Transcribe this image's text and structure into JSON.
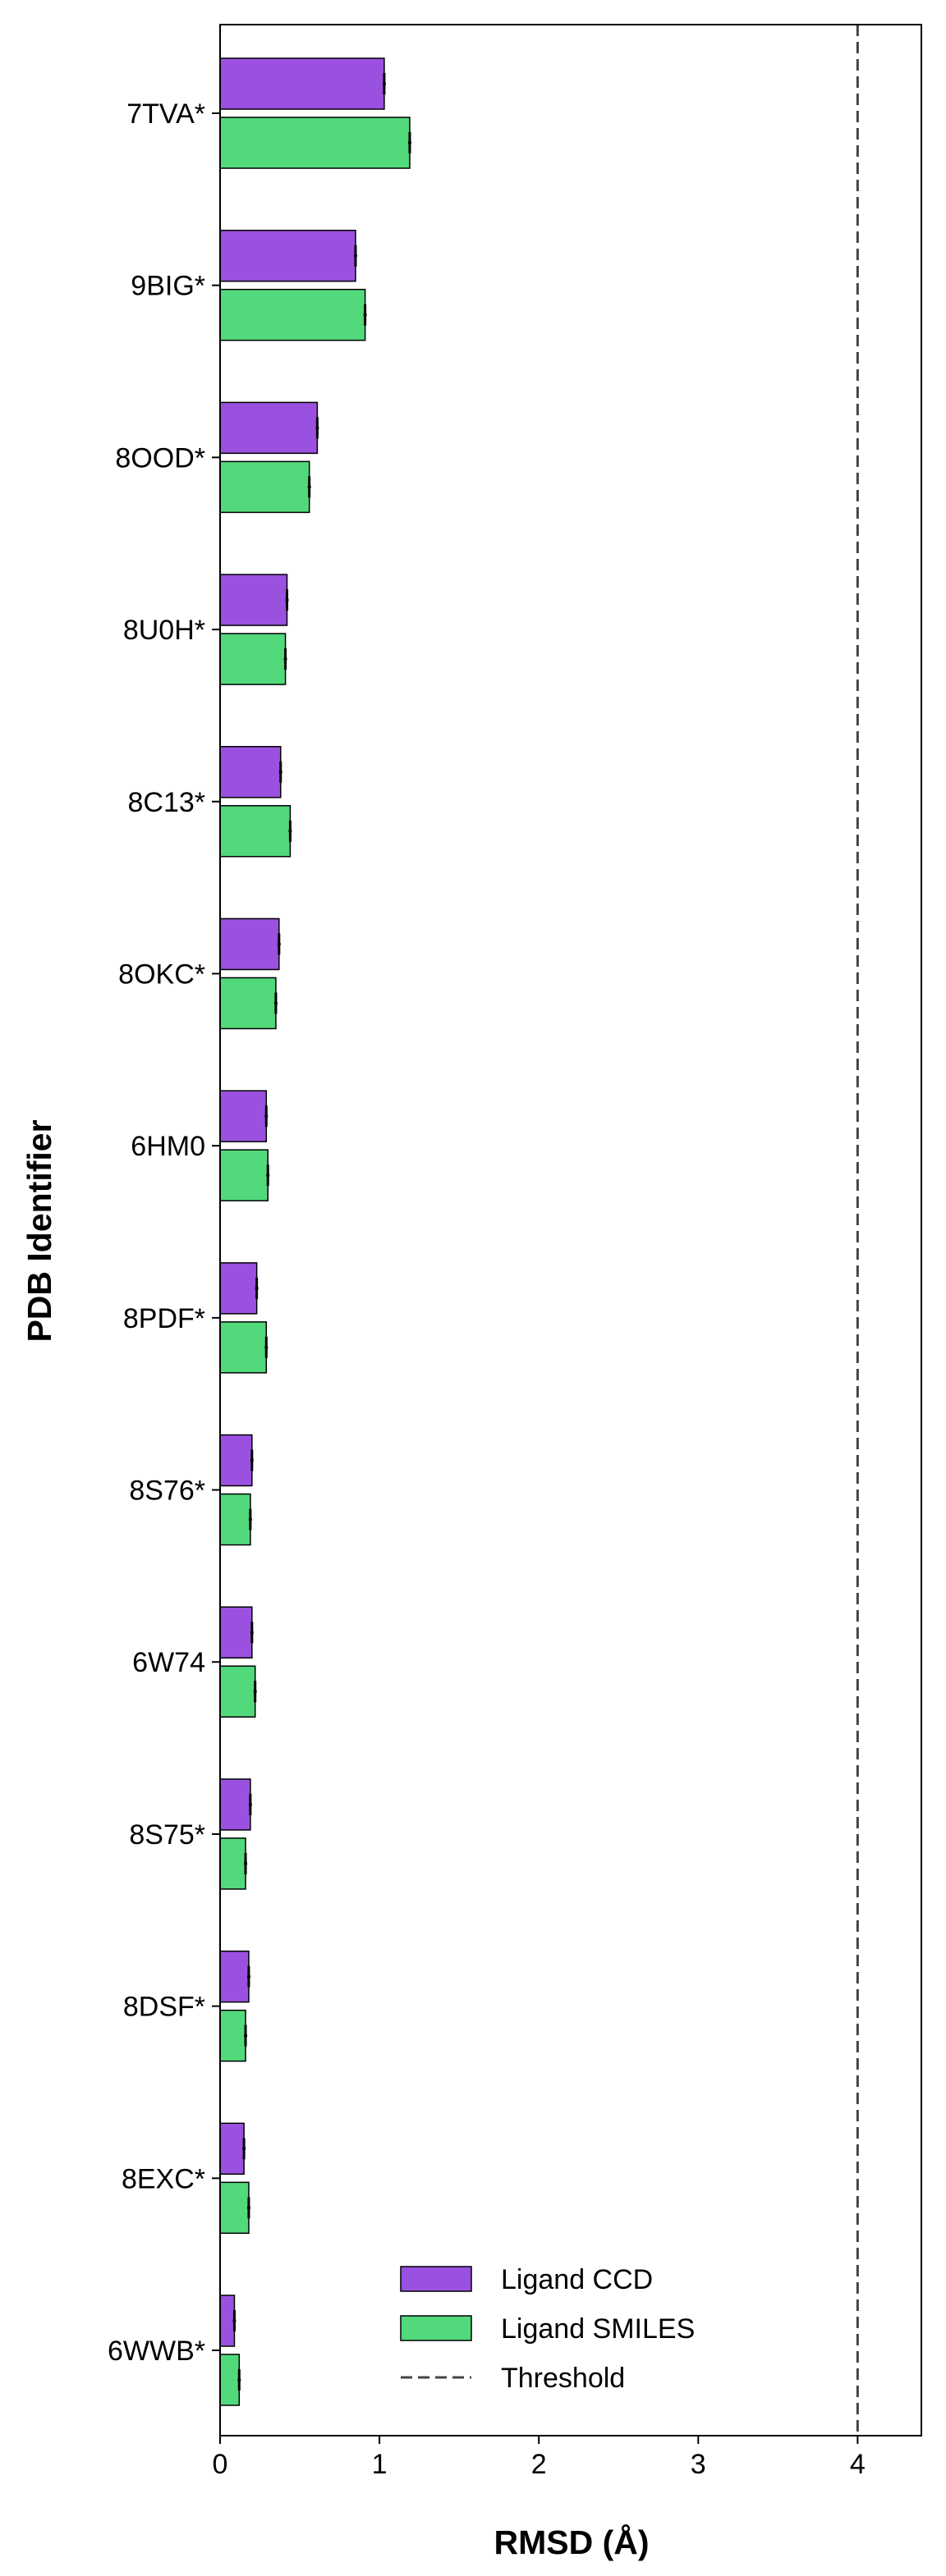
{
  "chart_data": {
    "type": "bar",
    "orientation": "horizontal",
    "xlabel": "RMSD (Å)",
    "ylabel": "PDB Identifier",
    "xlim": [
      0,
      4.4
    ],
    "x_ticks": [
      "0",
      "1",
      "2",
      "3",
      "4"
    ],
    "grid": false,
    "legend_position": "bottom-right",
    "categories": [
      "7TVA*",
      "9BIG*",
      "8OOD*",
      "8U0H*",
      "8C13*",
      "8OKC*",
      "6HM0",
      "8PDF*",
      "8S76*",
      "6W74",
      "8S75*",
      "8DSF*",
      "8EXC*",
      "6WWB*"
    ],
    "series": [
      {
        "name": "Ligand CCD",
        "color": "#9b51e0",
        "values": [
          1.03,
          0.85,
          0.61,
          0.42,
          0.38,
          0.37,
          0.29,
          0.23,
          0.2,
          0.2,
          0.19,
          0.18,
          0.15,
          0.09
        ],
        "errors": [
          0.01,
          0.01,
          0.01,
          0.01,
          0.01,
          0.01,
          0.01,
          0.01,
          0.01,
          0.01,
          0.01,
          0.01,
          0.01,
          0.01
        ]
      },
      {
        "name": "Ligand SMILES",
        "color": "#52d97b",
        "values": [
          1.19,
          0.91,
          0.56,
          0.41,
          0.44,
          0.35,
          0.3,
          0.29,
          0.19,
          0.22,
          0.16,
          0.16,
          0.18,
          0.12
        ],
        "errors": [
          0.01,
          0.01,
          0.01,
          0.01,
          0.01,
          0.01,
          0.01,
          0.01,
          0.01,
          0.01,
          0.01,
          0.01,
          0.01,
          0.01
        ]
      }
    ],
    "threshold": {
      "name": "Threshold",
      "value": 4,
      "color": "#444444"
    }
  }
}
